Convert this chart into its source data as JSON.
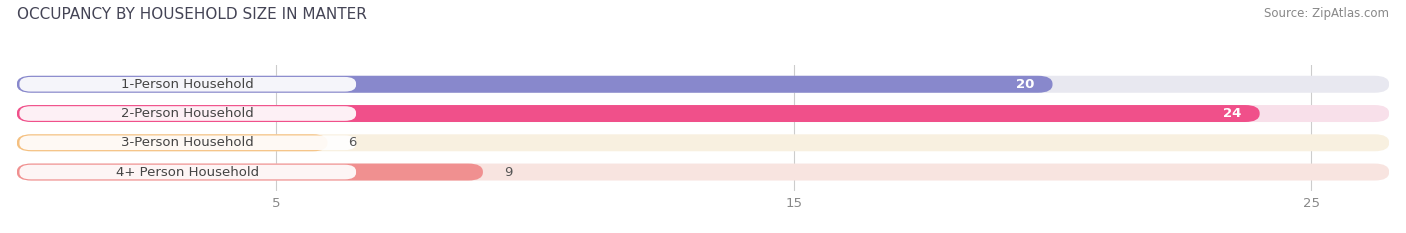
{
  "title": "OCCUPANCY BY HOUSEHOLD SIZE IN MANTER",
  "source": "Source: ZipAtlas.com",
  "categories": [
    "1-Person Household",
    "2-Person Household",
    "3-Person Household",
    "4+ Person Household"
  ],
  "values": [
    20,
    24,
    6,
    9
  ],
  "bar_colors": [
    "#8888cc",
    "#f0508a",
    "#f5c080",
    "#f09090"
  ],
  "bar_bg_colors": [
    "#e8e8f0",
    "#f8e0ea",
    "#f8f0e0",
    "#f8e4e0"
  ],
  "xlim": [
    0,
    26.5
  ],
  "xticks": [
    5,
    15,
    25
  ],
  "label_fontsize": 9.5,
  "value_fontsize": 9.5,
  "title_fontsize": 11,
  "source_fontsize": 8.5,
  "background_color": "#ffffff",
  "label_text_color": "#444444",
  "value_color_inside": "#ffffff",
  "value_color_outside": "#555555"
}
